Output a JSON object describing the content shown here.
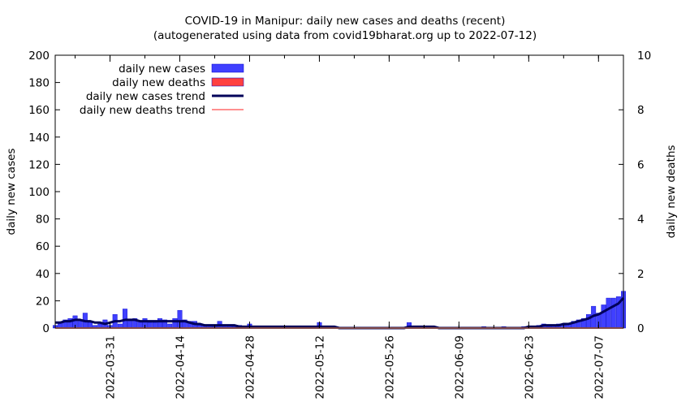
{
  "chart_data": {
    "type": "bar",
    "title": "COVID-19 in Manipur: daily new cases and deaths (recent)",
    "subtitle": "(autogenerated using data from covid19bharat.org up to 2022-07-12)",
    "ylabel": "daily new cases",
    "y2label": "daily new deaths",
    "ylim": [
      0,
      200
    ],
    "y2lim": [
      0,
      10
    ],
    "yticks": [
      "0",
      "20",
      "40",
      "60",
      "80",
      "100",
      "120",
      "140",
      "160",
      "180",
      "200"
    ],
    "y2ticks": [
      "0",
      "2",
      "4",
      "6",
      "8",
      "10"
    ],
    "xlim": [
      "2022-03-20",
      "2022-07-12"
    ],
    "xticks": [
      "2022-03-31",
      "2022-04-14",
      "2022-04-28",
      "2022-05-12",
      "2022-05-26",
      "2022-06-09",
      "2022-06-23",
      "2022-07-07"
    ],
    "grid": false,
    "legend_position": "top-left",
    "legend": [
      {
        "label": "daily new cases",
        "kind": "bar",
        "color": "#4040ff"
      },
      {
        "label": "daily new deaths",
        "kind": "bar",
        "color": "#ff4040"
      },
      {
        "label": "daily new cases trend",
        "kind": "line",
        "color": "#00005a"
      },
      {
        "label": "daily new deaths trend",
        "kind": "line",
        "color": "#ff9090"
      }
    ],
    "x": [
      "2022-03-20",
      "2022-03-21",
      "2022-03-22",
      "2022-03-23",
      "2022-03-24",
      "2022-03-25",
      "2022-03-26",
      "2022-03-27",
      "2022-03-28",
      "2022-03-29",
      "2022-03-30",
      "2022-03-31",
      "2022-04-01",
      "2022-04-02",
      "2022-04-03",
      "2022-04-04",
      "2022-04-05",
      "2022-04-06",
      "2022-04-07",
      "2022-04-08",
      "2022-04-09",
      "2022-04-10",
      "2022-04-11",
      "2022-04-12",
      "2022-04-13",
      "2022-04-14",
      "2022-04-15",
      "2022-04-16",
      "2022-04-17",
      "2022-04-18",
      "2022-04-19",
      "2022-04-20",
      "2022-04-21",
      "2022-04-22",
      "2022-04-23",
      "2022-04-24",
      "2022-04-25",
      "2022-04-26",
      "2022-04-27",
      "2022-04-28",
      "2022-04-29",
      "2022-04-30",
      "2022-05-01",
      "2022-05-02",
      "2022-05-03",
      "2022-05-04",
      "2022-05-05",
      "2022-05-06",
      "2022-05-07",
      "2022-05-08",
      "2022-05-09",
      "2022-05-10",
      "2022-05-11",
      "2022-05-12",
      "2022-05-13",
      "2022-05-14",
      "2022-05-15",
      "2022-05-16",
      "2022-05-17",
      "2022-05-18",
      "2022-05-19",
      "2022-05-20",
      "2022-05-21",
      "2022-05-22",
      "2022-05-23",
      "2022-05-24",
      "2022-05-25",
      "2022-05-26",
      "2022-05-27",
      "2022-05-28",
      "2022-05-29",
      "2022-05-30",
      "2022-05-31",
      "2022-06-01",
      "2022-06-02",
      "2022-06-03",
      "2022-06-04",
      "2022-06-05",
      "2022-06-06",
      "2022-06-07",
      "2022-06-08",
      "2022-06-09",
      "2022-06-10",
      "2022-06-11",
      "2022-06-12",
      "2022-06-13",
      "2022-06-14",
      "2022-06-15",
      "2022-06-16",
      "2022-06-17",
      "2022-06-18",
      "2022-06-19",
      "2022-06-20",
      "2022-06-21",
      "2022-06-22",
      "2022-06-23",
      "2022-06-24",
      "2022-06-25",
      "2022-06-26",
      "2022-06-27",
      "2022-06-28",
      "2022-06-29",
      "2022-06-30",
      "2022-07-01",
      "2022-07-02",
      "2022-07-03",
      "2022-07-04",
      "2022-07-05",
      "2022-07-06",
      "2022-07-07",
      "2022-07-08",
      "2022-07-09",
      "2022-07-10",
      "2022-07-11",
      "2022-07-12"
    ],
    "series": [
      {
        "name": "daily new cases",
        "kind": "bar",
        "axis": "y",
        "color": "#4040ff",
        "values": [
          2,
          4,
          6,
          7,
          9,
          5,
          11,
          4,
          2,
          3,
          6,
          2,
          10,
          3,
          14,
          5,
          7,
          5,
          7,
          4,
          4,
          7,
          6,
          3,
          7,
          13,
          6,
          5,
          5,
          2,
          2,
          2,
          1,
          5,
          2,
          2,
          1,
          2,
          1,
          3,
          1,
          0,
          1,
          1,
          0,
          1,
          1,
          0,
          1,
          0,
          0,
          0,
          0,
          4,
          1,
          0,
          0,
          0,
          0,
          0,
          0,
          0,
          0,
          0,
          0,
          0,
          0,
          0,
          0,
          0,
          0,
          4,
          1,
          1,
          1,
          1,
          0,
          0,
          0,
          0,
          0,
          0,
          0,
          0,
          0,
          0,
          1,
          0,
          0,
          0,
          1,
          0,
          0,
          0,
          1,
          1,
          1,
          2,
          3,
          1,
          2,
          3,
          2,
          3,
          5,
          6,
          7,
          10,
          16,
          11,
          17,
          22,
          22,
          23,
          27
        ]
      },
      {
        "name": "daily new deaths",
        "kind": "bar",
        "axis": "y2",
        "color": "#ff4040",
        "values": [
          0,
          0,
          0,
          0,
          0,
          0,
          0,
          0,
          0,
          0,
          0,
          0,
          0,
          0,
          0,
          0,
          0,
          0,
          0,
          0,
          0,
          0,
          0,
          0,
          0,
          0,
          0,
          0,
          0,
          0,
          0,
          0,
          0,
          0,
          0,
          0,
          0,
          0,
          0,
          0,
          0,
          0,
          0,
          0,
          0,
          0,
          0,
          0,
          0,
          0,
          0,
          0,
          0,
          0,
          0,
          0,
          0,
          0,
          0,
          0,
          0,
          0,
          0,
          0,
          0,
          0,
          0,
          0,
          0,
          0,
          0,
          0,
          0,
          0,
          0,
          0,
          0,
          0,
          0,
          0,
          0,
          0,
          0,
          0,
          0,
          0,
          0,
          0,
          0,
          0,
          0,
          0,
          0,
          0,
          0,
          0,
          0,
          0,
          0,
          0,
          0,
          0,
          0,
          0,
          0,
          0,
          0,
          0,
          0,
          0,
          0,
          0,
          0,
          0,
          0
        ]
      },
      {
        "name": "daily new cases trend",
        "kind": "line",
        "axis": "y",
        "color": "#00005a",
        "values": [
          4,
          4,
          5,
          5,
          6,
          6,
          5,
          5,
          4,
          4,
          3,
          4,
          5,
          5,
          6,
          6,
          6,
          5,
          5,
          5,
          5,
          5,
          5,
          5,
          5,
          5,
          5,
          4,
          3,
          3,
          2,
          2,
          2,
          2,
          2,
          2,
          2,
          1,
          1,
          1,
          1,
          1,
          1,
          1,
          1,
          1,
          1,
          1,
          1,
          1,
          1,
          1,
          1,
          1,
          1,
          1,
          1,
          0,
          0,
          0,
          0,
          0,
          0,
          0,
          0,
          0,
          0,
          0,
          0,
          0,
          0,
          1,
          1,
          1,
          1,
          1,
          1,
          0,
          0,
          0,
          0,
          0,
          0,
          0,
          0,
          0,
          0,
          0,
          0,
          0,
          0,
          0,
          0,
          0,
          0,
          1,
          1,
          1,
          2,
          2,
          2,
          2,
          3,
          3,
          4,
          5,
          6,
          7,
          9,
          10,
          12,
          14,
          16,
          18,
          22
        ]
      },
      {
        "name": "daily new deaths trend",
        "kind": "line",
        "axis": "y2",
        "color": "#ff9090",
        "values": [
          0,
          0,
          0,
          0,
          0,
          0,
          0,
          0,
          0,
          0,
          0,
          0,
          0,
          0,
          0,
          0,
          0,
          0,
          0,
          0,
          0,
          0,
          0,
          0,
          0,
          0,
          0,
          0,
          0,
          0,
          0,
          0,
          0,
          0,
          0,
          0,
          0,
          0,
          0,
          0,
          0,
          0,
          0,
          0,
          0,
          0,
          0,
          0,
          0,
          0,
          0,
          0,
          0,
          0,
          0,
          0,
          0,
          0,
          0,
          0,
          0,
          0,
          0,
          0,
          0,
          0,
          0,
          0,
          0,
          0,
          0,
          0,
          0,
          0,
          0,
          0,
          0,
          0,
          0,
          0,
          0,
          0,
          0,
          0,
          0,
          0,
          0,
          0,
          0,
          0,
          0,
          0,
          0,
          0,
          0,
          0,
          0,
          0,
          0,
          0,
          0,
          0,
          0,
          0,
          0,
          0,
          0,
          0,
          0,
          0,
          0,
          0,
          0,
          0,
          0
        ]
      }
    ]
  }
}
